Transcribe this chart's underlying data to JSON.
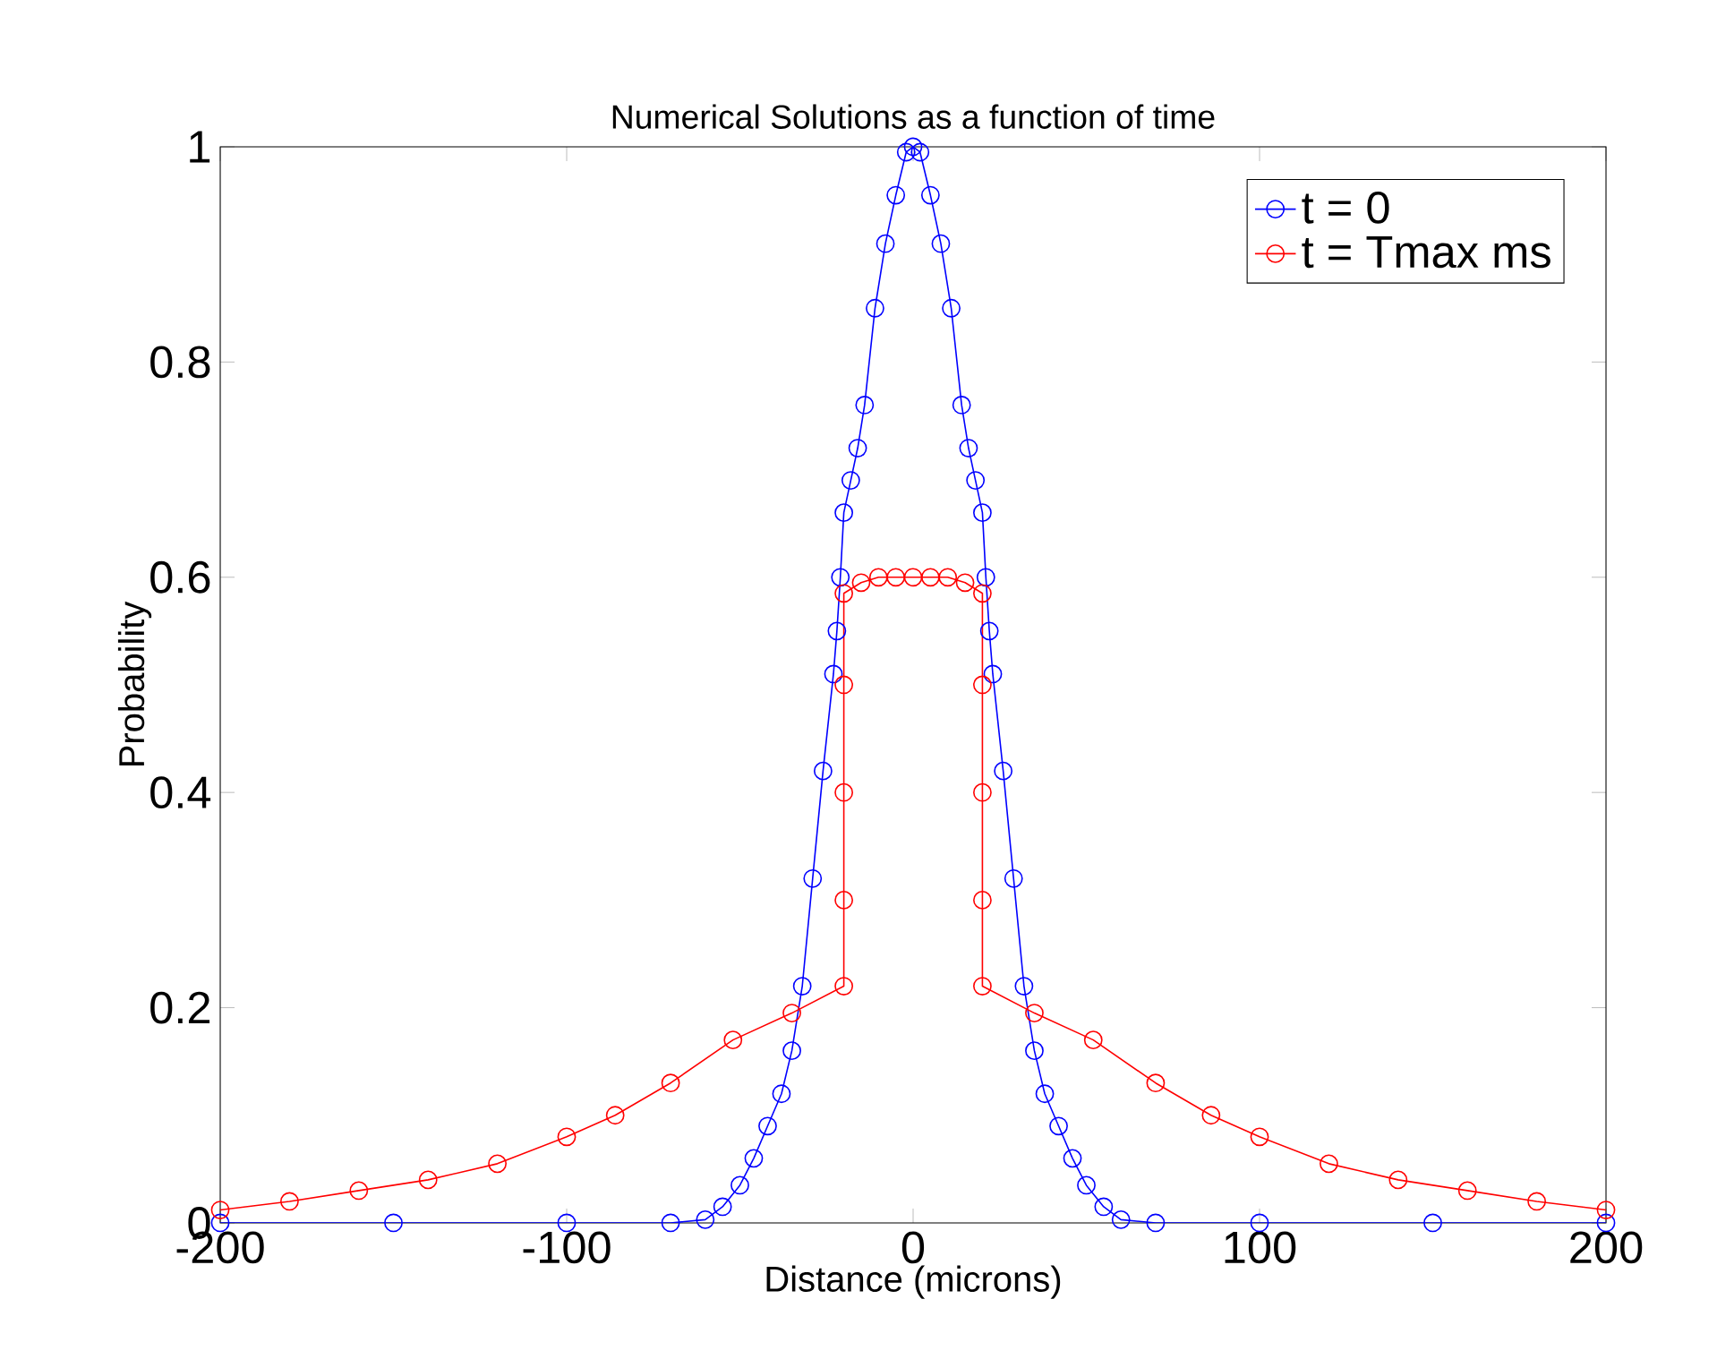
{
  "chart_data": {
    "type": "line",
    "title": "Numerical Solutions as a function of time",
    "xlabel": "Distance (microns)",
    "ylabel": "Probability",
    "xlim": [
      -200,
      200
    ],
    "ylim": [
      0,
      1
    ],
    "xticks": [
      -200,
      -100,
      0,
      100,
      200
    ],
    "yticks": [
      0,
      0.2,
      0.4,
      0.6,
      0.8,
      1
    ],
    "legend": "top right",
    "marker": "circle",
    "line_style": "solid",
    "grid": false,
    "series": [
      {
        "name": "t = 0",
        "color": "#0000ff",
        "x": [
          -200,
          -150,
          -100,
          -70,
          -60,
          -55,
          -50,
          -46,
          -42,
          -38,
          -35,
          -32,
          -29,
          -26,
          -23,
          -22,
          -21,
          -20,
          -18,
          -16,
          -14,
          -11,
          -8,
          -5,
          -2,
          0,
          2,
          5,
          8,
          11,
          14,
          16,
          18,
          20,
          21,
          22,
          23,
          26,
          29,
          32,
          35,
          38,
          42,
          46,
          50,
          55,
          60,
          70,
          100,
          150,
          200
        ],
        "values": [
          0,
          0,
          0,
          0,
          0.003,
          0.015,
          0.035,
          0.06,
          0.09,
          0.12,
          0.16,
          0.22,
          0.32,
          0.42,
          0.51,
          0.55,
          0.6,
          0.66,
          0.69,
          0.72,
          0.76,
          0.85,
          0.91,
          0.955,
          0.995,
          1,
          0.995,
          0.955,
          0.91,
          0.85,
          0.76,
          0.72,
          0.69,
          0.66,
          0.6,
          0.55,
          0.51,
          0.42,
          0.32,
          0.22,
          0.16,
          0.12,
          0.09,
          0.06,
          0.035,
          0.015,
          0.003,
          0,
          0,
          0,
          0
        ]
      },
      {
        "name": "t = Tmax ms",
        "color": "#ff0000",
        "x": [
          -200,
          -180,
          -160,
          -140,
          -120,
          -100,
          -86,
          -70,
          -52,
          -35,
          -20,
          -20,
          -20,
          -20,
          -20,
          -15,
          -10,
          -5,
          0,
          5,
          10,
          15,
          20,
          20,
          20,
          20,
          20,
          35,
          52,
          70,
          86,
          100,
          120,
          140,
          160,
          180,
          200
        ],
        "values": [
          0.012,
          0.02,
          0.03,
          0.04,
          0.055,
          0.08,
          0.1,
          0.13,
          0.17,
          0.195,
          0.22,
          0.3,
          0.4,
          0.5,
          0.585,
          0.595,
          0.6,
          0.6,
          0.6,
          0.6,
          0.6,
          0.595,
          0.585,
          0.5,
          0.4,
          0.3,
          0.22,
          0.195,
          0.17,
          0.13,
          0.1,
          0.08,
          0.055,
          0.04,
          0.03,
          0.02,
          0.012
        ]
      }
    ]
  }
}
